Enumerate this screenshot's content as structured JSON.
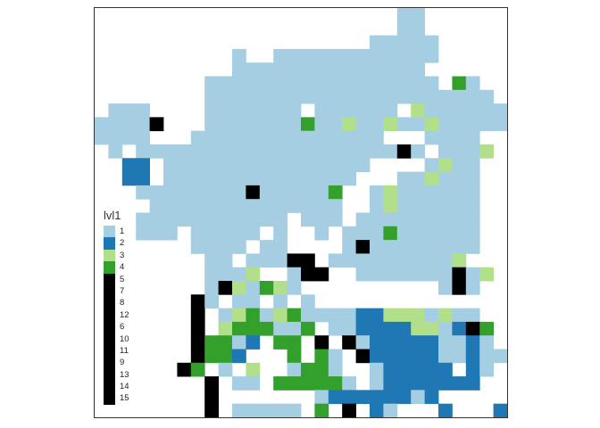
{
  "legend": {
    "title": "lvl1",
    "items": [
      {
        "label": "1",
        "color": "#a6cee3"
      },
      {
        "label": "2",
        "color": "#1f78b4"
      },
      {
        "label": "3",
        "color": "#b2df8a"
      },
      {
        "label": "4",
        "color": "#33a02c"
      },
      {
        "label": "5",
        "color": "#000000"
      },
      {
        "label": "7",
        "color": "#000000"
      },
      {
        "label": "8",
        "color": "#000000"
      },
      {
        "label": "12",
        "color": "#000000"
      },
      {
        "label": "6",
        "color": "#000000"
      },
      {
        "label": "10",
        "color": "#000000"
      },
      {
        "label": "11",
        "color": "#000000"
      },
      {
        "label": "9",
        "color": "#000000"
      },
      {
        "label": "13",
        "color": "#000000"
      },
      {
        "label": "14",
        "color": "#000000"
      },
      {
        "label": "15",
        "color": "#000000"
      }
    ]
  },
  "grid": {
    "cols": 30,
    "rows": 30,
    "cells": [
      "......................11......",
      "......................11......",
      "....................11111.....",
      "..........1..111111111111.....",
      "..........11111111111111......",
      "........11111111111111111.41..",
      "........111111111111111111111.",
      ".111....1111111.111111.3111111",
      "11115...1111111411311311311111",
      "1111...11111111111111...1111..",
      ".1.111111111111111111151.1113.",
      "..22.111111111111111....1311..",
      "..22.11111111111111...113111..",
      "...111111115111114..13111111..",
      "....11111111111111..13111111..",
      "...11111111111.111.111111111..",
      "...111.11111.1..1.1114111111..",
      ".......1111.11....1511111111..",
      "........11.11155.1111111113...",
      "........1113..155..1111111513.",
      "........1531431..........151..",
      ".......51.11.1.1..............",
      ".......5.1341341111223331311..",
      ".......5.3444114.112222331254.",
      ".......54412.44.5.51222221121.",
      ".......5442...4.41.52222211211",
      "......54.1.3..1441..122222.21..",
      "........5.11.444441.12222222...",
      "........5.......122222212......",
      "........5.11111.4.5.21...2...22"
    ]
  }
}
